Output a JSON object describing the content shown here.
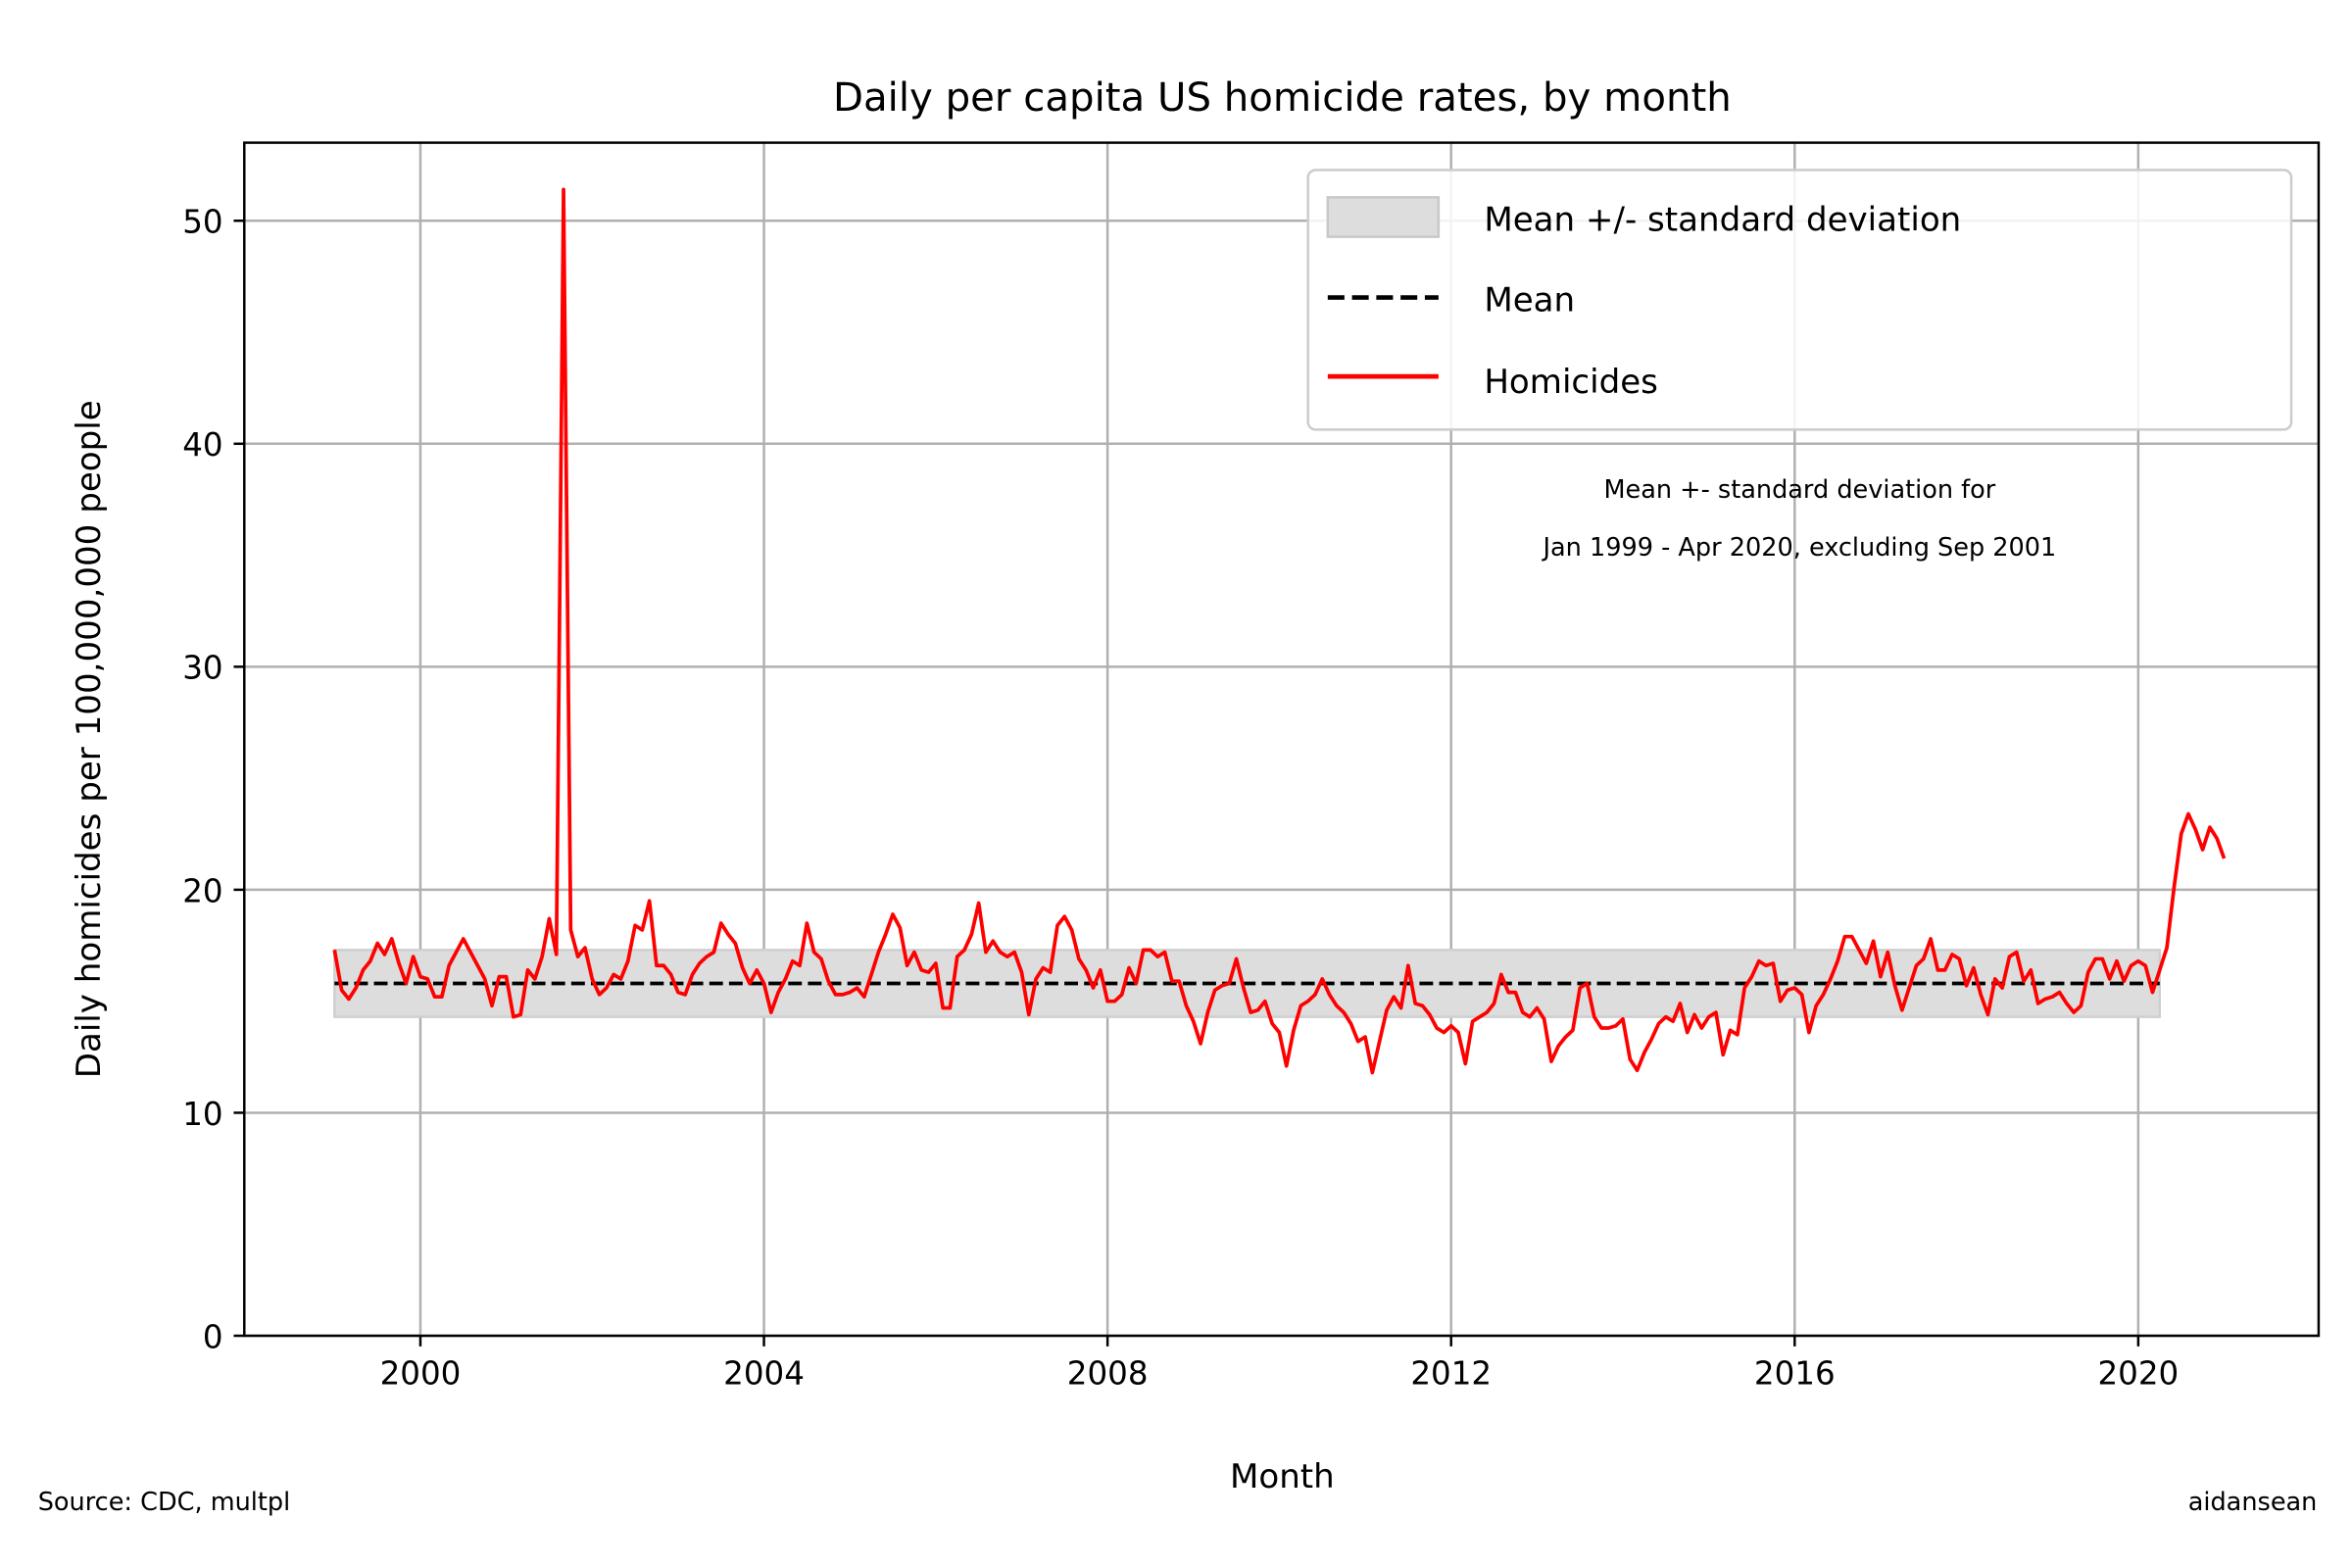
{
  "chart_data": {
    "type": "line",
    "title": "Daily per capita US homicide rates, by month",
    "xlabel": "Month",
    "ylabel": "Daily homicides per 100,000,000 people",
    "xlim": [
      1997.95,
      2022.1
    ],
    "ylim": [
      0,
      53.5
    ],
    "x_ticks": [
      2000,
      2004,
      2008,
      2012,
      2016,
      2020
    ],
    "x_tick_labels": [
      "2000",
      "2004",
      "2008",
      "2012",
      "2016",
      "2020"
    ],
    "y_ticks": [
      0,
      10,
      20,
      30,
      40,
      50
    ],
    "y_tick_labels": [
      "0",
      "10",
      "20",
      "30",
      "40",
      "50"
    ],
    "grid": true,
    "legend_position": "top-right",
    "legend": [
      {
        "label": "Mean +/- standard deviation",
        "kind": "band",
        "color": "#dddddd"
      },
      {
        "label": "Mean",
        "kind": "dashed-line",
        "color": "#000000"
      },
      {
        "label": "Homicides",
        "kind": "line",
        "color": "#ff0000"
      }
    ],
    "annotation": [
      "Mean +- standard deviation for",
      "Jan 1999 - Apr 2020, excluding Sep 2001"
    ],
    "mean": 15.8,
    "std_band": {
      "lower": 14.3,
      "upper": 17.3,
      "x_start": 1999.0,
      "x_end": 2020.25
    },
    "series": [
      {
        "name": "Homicides",
        "color": "#ff0000",
        "x_start": 1999.0,
        "x_step_months": 1,
        "values": [
          17.3,
          15.5,
          15.1,
          15.6,
          16.4,
          16.8,
          17.6,
          17.1,
          17.8,
          16.7,
          15.8,
          17.0,
          16.1,
          16.0,
          15.2,
          15.2,
          16.6,
          17.2,
          17.8,
          17.2,
          16.6,
          16.0,
          14.8,
          16.1,
          16.1,
          14.3,
          14.4,
          16.4,
          16.0,
          17.0,
          18.7,
          17.1,
          51.4,
          18.2,
          17.0,
          17.4,
          16.0,
          15.3,
          15.6,
          16.2,
          16.0,
          16.8,
          18.4,
          18.2,
          19.5,
          16.6,
          16.6,
          16.2,
          15.4,
          15.3,
          16.2,
          16.7,
          17.0,
          17.2,
          18.5,
          18.0,
          17.6,
          16.5,
          15.8,
          16.4,
          15.8,
          14.5,
          15.4,
          16.0,
          16.8,
          16.6,
          18.5,
          17.2,
          16.9,
          15.9,
          15.3,
          15.3,
          15.4,
          15.6,
          15.2,
          16.2,
          17.2,
          18.0,
          18.9,
          18.3,
          16.6,
          17.2,
          16.4,
          16.3,
          16.7,
          14.7,
          14.7,
          17.0,
          17.3,
          18.0,
          19.4,
          17.2,
          17.7,
          17.2,
          17.0,
          17.2,
          16.3,
          14.4,
          16.0,
          16.5,
          16.3,
          18.4,
          18.8,
          18.2,
          16.9,
          16.4,
          15.6,
          16.4,
          15.0,
          15.0,
          15.3,
          16.5,
          15.8,
          17.3,
          17.3,
          17.0,
          17.2,
          15.9,
          15.9,
          14.8,
          14.1,
          13.1,
          14.5,
          15.5,
          15.7,
          15.8,
          16.9,
          15.6,
          14.5,
          14.6,
          15.0,
          14.0,
          13.6,
          12.1,
          13.7,
          14.8,
          15.0,
          15.3,
          16.0,
          15.3,
          14.8,
          14.5,
          14.0,
          13.2,
          13.4,
          11.8,
          13.2,
          14.6,
          15.2,
          14.7,
          16.6,
          14.9,
          14.8,
          14.4,
          13.8,
          13.6,
          13.9,
          13.6,
          12.2,
          14.1,
          14.3,
          14.5,
          14.9,
          16.2,
          15.4,
          15.4,
          14.5,
          14.3,
          14.7,
          14.2,
          12.3,
          13.0,
          13.4,
          13.7,
          15.6,
          15.8,
          14.3,
          13.8,
          13.8,
          13.9,
          14.2,
          12.4,
          11.9,
          12.7,
          13.3,
          14.0,
          14.3,
          14.1,
          14.9,
          13.6,
          14.4,
          13.8,
          14.3,
          14.5,
          12.6,
          13.7,
          13.5,
          15.6,
          16.1,
          16.8,
          16.6,
          16.7,
          15.0,
          15.5,
          15.6,
          15.3,
          13.6,
          14.8,
          15.3,
          16.0,
          16.8,
          17.9,
          17.9,
          17.3,
          16.7,
          17.7,
          16.1,
          17.2,
          15.7,
          14.6,
          15.6,
          16.6,
          16.9,
          17.8,
          16.4,
          16.4,
          17.1,
          16.9,
          15.7,
          16.5,
          15.3,
          14.4,
          16.0,
          15.6,
          17.0,
          17.2,
          15.9,
          16.4,
          14.9,
          15.1,
          15.2,
          15.4,
          14.9,
          14.5,
          14.8,
          16.3,
          16.9,
          16.9,
          16.0,
          16.8,
          15.9,
          16.6,
          16.8,
          16.6,
          15.4,
          16.4,
          17.4,
          20.1,
          22.5,
          23.4,
          22.7,
          21.8,
          22.8,
          22.3,
          21.4
        ]
      }
    ]
  },
  "footer": {
    "source": "Source: CDC, multpl",
    "author": "aidansean"
  }
}
